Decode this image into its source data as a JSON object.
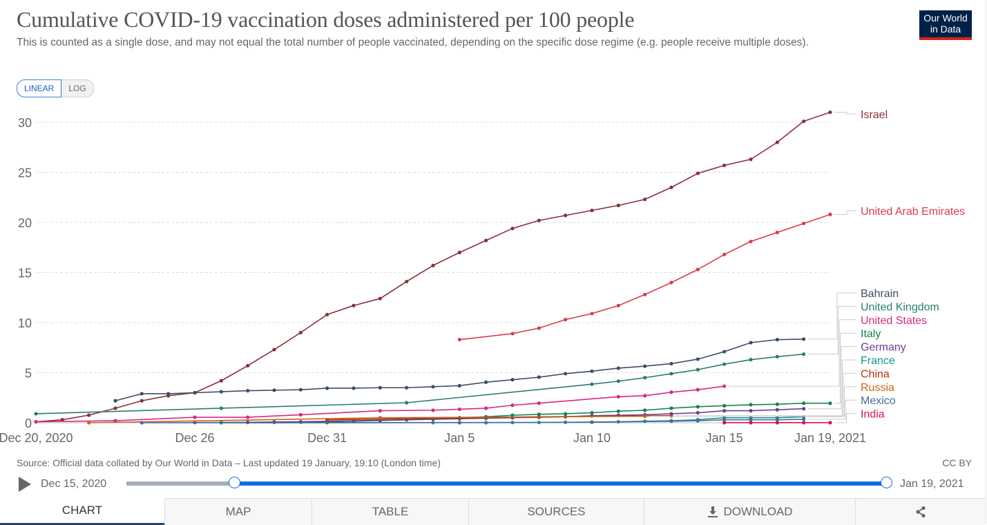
{
  "header": {
    "title": "Cumulative COVID-19 vaccination doses administered per 100 people",
    "subtitle": "This is counted as a single dose, and may not equal the total number of people vaccinated, depending on the specific dose regime (e.g. people receive multiple doses).",
    "logo_line1": "Our World",
    "logo_line2": "in Data"
  },
  "scale_toggle": {
    "linear": "LINEAR",
    "log": "LOG",
    "selected": "LINEAR"
  },
  "chart_data": {
    "type": "line",
    "title": "Cumulative COVID-19 vaccination doses administered per 100 people",
    "ylim": [
      0,
      31
    ],
    "yticks": [
      0,
      5,
      10,
      15,
      20,
      25,
      30
    ],
    "grid": "horizontal dashed",
    "legend": "right (line-end labels)",
    "xtick_labels": [
      {
        "date": "2020-12-20",
        "label": "Dec 20, 2020"
      },
      {
        "date": "2020-12-26",
        "label": "Dec 26"
      },
      {
        "date": "2020-12-31",
        "label": "Dec 31"
      },
      {
        "date": "2021-01-05",
        "label": "Jan 5"
      },
      {
        "date": "2021-01-10",
        "label": "Jan 10"
      },
      {
        "date": "2021-01-15",
        "label": "Jan 15"
      },
      {
        "date": "2021-01-19",
        "label": "Jan 19, 2021"
      }
    ],
    "x": [
      "2020-12-20",
      "2020-12-21",
      "2020-12-22",
      "2020-12-23",
      "2020-12-24",
      "2020-12-25",
      "2020-12-26",
      "2020-12-27",
      "2020-12-28",
      "2020-12-29",
      "2020-12-30",
      "2020-12-31",
      "2021-01-01",
      "2021-01-02",
      "2021-01-03",
      "2021-01-04",
      "2021-01-05",
      "2021-01-06",
      "2021-01-07",
      "2021-01-08",
      "2021-01-09",
      "2021-01-10",
      "2021-01-11",
      "2021-01-12",
      "2021-01-13",
      "2021-01-14",
      "2021-01-15",
      "2021-01-16",
      "2021-01-17",
      "2021-01-18",
      "2021-01-19"
    ],
    "series": [
      {
        "name": "Israel",
        "color": "#883039",
        "values": [
          0.1,
          0.3,
          0.76,
          1.45,
          2.2,
          2.7,
          3.0,
          4.2,
          5.7,
          7.3,
          9.0,
          10.8,
          11.7,
          12.4,
          14.1,
          15.7,
          17.0,
          18.2,
          19.4,
          20.2,
          20.7,
          21.2,
          21.7,
          22.3,
          23.5,
          24.9,
          25.7,
          26.3,
          28.0,
          30.1,
          31.0
        ]
      },
      {
        "name": "United Arab Emirates",
        "color": "#d73c50",
        "values": [
          null,
          null,
          null,
          null,
          null,
          null,
          null,
          null,
          null,
          null,
          null,
          null,
          null,
          null,
          null,
          null,
          8.3,
          null,
          8.9,
          9.45,
          10.3,
          10.9,
          11.7,
          12.8,
          14.0,
          15.3,
          16.8,
          18.1,
          19.0,
          19.9,
          20.8
        ]
      },
      {
        "name": "Bahrain",
        "color": "#3c4e66",
        "values": [
          null,
          null,
          null,
          2.2,
          2.9,
          2.9,
          3.0,
          3.1,
          3.2,
          3.25,
          3.3,
          3.45,
          3.45,
          3.5,
          3.5,
          3.6,
          3.7,
          4.05,
          4.3,
          4.55,
          4.9,
          5.15,
          5.45,
          5.65,
          5.9,
          6.35,
          7.1,
          8.0,
          8.3,
          8.35,
          null
        ]
      },
      {
        "name": "United Kingdom",
        "color": "#2a7d6e",
        "values": [
          0.9,
          null,
          null,
          null,
          null,
          null,
          null,
          1.45,
          null,
          null,
          null,
          null,
          null,
          null,
          2.0,
          null,
          null,
          null,
          null,
          null,
          null,
          3.85,
          4.15,
          4.5,
          4.9,
          5.3,
          5.85,
          6.3,
          6.6,
          6.85,
          null
        ]
      },
      {
        "name": "United States",
        "color": "#d42a7f",
        "values": [
          0.1,
          null,
          null,
          0.2,
          null,
          null,
          0.55,
          null,
          0.55,
          null,
          0.8,
          null,
          null,
          1.2,
          null,
          1.25,
          1.35,
          1.45,
          1.75,
          1.95,
          null,
          null,
          2.6,
          2.7,
          3.05,
          3.3,
          3.65,
          null,
          null,
          null,
          null
        ]
      },
      {
        "name": "Italy",
        "color": "#12864e",
        "values": [
          null,
          null,
          null,
          null,
          null,
          null,
          null,
          0.02,
          0.03,
          0.04,
          0.06,
          0.1,
          0.15,
          0.22,
          0.3,
          0.4,
          0.5,
          0.6,
          0.75,
          0.85,
          0.9,
          1.0,
          1.15,
          1.25,
          1.45,
          1.6,
          1.7,
          1.8,
          1.85,
          1.95,
          1.95
        ]
      },
      {
        "name": "Germany",
        "color": "#6d3e91",
        "values": [
          null,
          null,
          null,
          null,
          null,
          null,
          0.02,
          0.03,
          0.05,
          0.08,
          0.1,
          0.15,
          0.2,
          0.25,
          0.3,
          0.35,
          0.4,
          0.45,
          0.5,
          0.55,
          0.6,
          0.7,
          0.75,
          0.8,
          0.9,
          1.0,
          1.2,
          1.2,
          1.3,
          1.4,
          null
        ]
      },
      {
        "name": "France",
        "color": "#16928a",
        "values": [
          null,
          null,
          null,
          null,
          null,
          null,
          null,
          0.0,
          null,
          null,
          null,
          null,
          null,
          null,
          null,
          0.01,
          0.01,
          0.01,
          0.02,
          0.03,
          0.05,
          0.07,
          0.1,
          0.15,
          0.2,
          0.3,
          0.5,
          0.5,
          0.5,
          0.6,
          null
        ]
      },
      {
        "name": "China",
        "color": "#b13507",
        "values": [
          null,
          null,
          null,
          null,
          null,
          null,
          null,
          null,
          null,
          null,
          null,
          0.3,
          null,
          null,
          null,
          null,
          null,
          null,
          null,
          0.6,
          null,
          null,
          null,
          null,
          0.7,
          null,
          null,
          null,
          null,
          null,
          null
        ]
      },
      {
        "name": "Russia",
        "color": "#c8651b",
        "values": [
          null,
          null,
          0.0,
          null,
          null,
          null,
          null,
          null,
          null,
          null,
          null,
          null,
          null,
          0.5,
          null,
          null,
          null,
          null,
          null,
          null,
          null,
          null,
          null,
          0.65,
          null,
          null,
          null,
          null,
          null,
          null,
          null
        ]
      },
      {
        "name": "Mexico",
        "color": "#4c6a9c",
        "values": [
          null,
          null,
          null,
          null,
          0.0,
          null,
          null,
          null,
          null,
          null,
          null,
          0.01,
          null,
          null,
          null,
          null,
          0.02,
          null,
          null,
          null,
          null,
          0.05,
          null,
          null,
          0.15,
          0.2,
          0.3,
          0.3,
          0.3,
          0.35,
          null
        ]
      },
      {
        "name": "India",
        "color": "#d8114f",
        "values": [
          null,
          null,
          null,
          null,
          null,
          null,
          null,
          null,
          null,
          null,
          null,
          null,
          null,
          null,
          null,
          null,
          null,
          null,
          null,
          null,
          null,
          null,
          null,
          null,
          null,
          null,
          0.01,
          0.01,
          0.01,
          0.01,
          0.01
        ]
      }
    ]
  },
  "footer": {
    "source": "Source: Official data collated by Our World in Data – Last updated 19 January, 19:10 (London time)",
    "license": "CC BY"
  },
  "timeline": {
    "start": "Dec 15, 2020",
    "end": "Jan 19, 2021",
    "selected_start": "Dec 20, 2020",
    "selected_end": "Jan 19, 2021"
  },
  "tabs": [
    {
      "label": "CHART",
      "icon": "",
      "active": true
    },
    {
      "label": "MAP",
      "icon": ""
    },
    {
      "label": "TABLE",
      "icon": ""
    },
    {
      "label": "SOURCES",
      "icon": ""
    },
    {
      "label": "DOWNLOAD",
      "icon": "download-icon"
    },
    {
      "label": "",
      "icon": "share-icon"
    }
  ]
}
